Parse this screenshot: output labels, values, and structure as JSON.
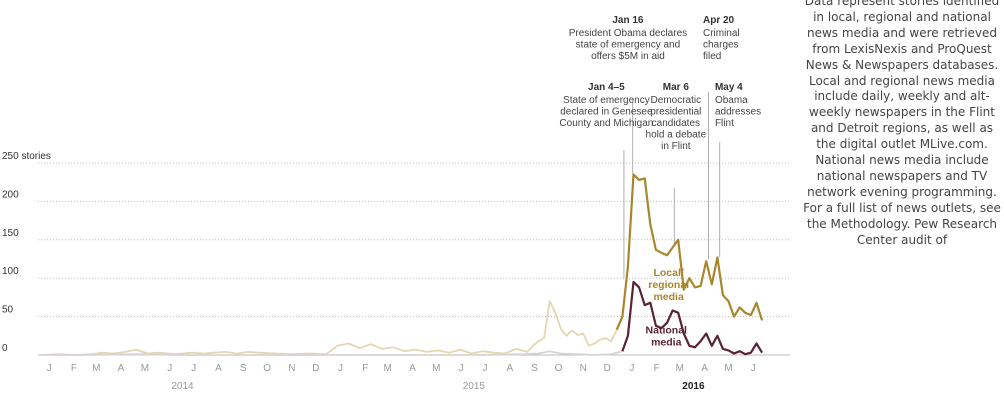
{
  "note": "Data represent stories identified in local, regional and national news media and were retrieved from LexisNexis and ProQuest News & Newspapers databases. Local and regional news media include daily, weekly and alt-weekly newspapers in the Flint and Detroit regions, as well as the digital outlet MLive.com. National news media include national newspapers and TV network evening programming. For a full list of news outlets, see the Methodology. Pew Research Center audit of",
  "colors": {
    "local_highlight": "#a8862c",
    "local_faded": "#e3d7b2",
    "national_highlight": "#5a2331",
    "national_faded": "#d9d2d4",
    "grid": "#bdbdbd",
    "annotation_line": "#9a9a9a"
  },
  "chart_data": {
    "type": "line",
    "x_unit": "week",
    "x_start": "2014-01-01",
    "x_end": "2016-07-31",
    "ylim": [
      0,
      250
    ],
    "grid": true,
    "y_ticks": [
      {
        "value": 0,
        "label": "0"
      },
      {
        "value": 50,
        "label": "50"
      },
      {
        "value": 100,
        "label": "100"
      },
      {
        "value": 150,
        "label": "150"
      },
      {
        "value": 200,
        "label": "200"
      },
      {
        "value": 250,
        "label": "250 stories"
      }
    ],
    "x_ticks": [
      {
        "date": "2014-01-15",
        "label": "J"
      },
      {
        "date": "2014-02-15",
        "label": "F"
      },
      {
        "date": "2014-03-15",
        "label": "M"
      },
      {
        "date": "2014-04-15",
        "label": "A"
      },
      {
        "date": "2014-05-15",
        "label": "M"
      },
      {
        "date": "2014-06-15",
        "label": "J"
      },
      {
        "date": "2014-07-15",
        "label": "J"
      },
      {
        "date": "2014-08-15",
        "label": "A"
      },
      {
        "date": "2014-09-15",
        "label": "S"
      },
      {
        "date": "2014-10-15",
        "label": "O"
      },
      {
        "date": "2014-11-15",
        "label": "N"
      },
      {
        "date": "2014-12-15",
        "label": "D"
      },
      {
        "date": "2015-01-15",
        "label": "J"
      },
      {
        "date": "2015-02-15",
        "label": "F"
      },
      {
        "date": "2015-03-15",
        "label": "M"
      },
      {
        "date": "2015-04-15",
        "label": "A"
      },
      {
        "date": "2015-05-15",
        "label": "M"
      },
      {
        "date": "2015-06-15",
        "label": "J"
      },
      {
        "date": "2015-07-15",
        "label": "J"
      },
      {
        "date": "2015-08-15",
        "label": "A"
      },
      {
        "date": "2015-09-15",
        "label": "S"
      },
      {
        "date": "2015-10-15",
        "label": "O"
      },
      {
        "date": "2015-11-15",
        "label": "N"
      },
      {
        "date": "2015-12-15",
        "label": "D"
      },
      {
        "date": "2016-01-15",
        "label": "J"
      },
      {
        "date": "2016-02-15",
        "label": "F"
      },
      {
        "date": "2016-03-15",
        "label": "M"
      },
      {
        "date": "2016-04-15",
        "label": "A"
      },
      {
        "date": "2016-05-15",
        "label": "M"
      },
      {
        "date": "2016-06-15",
        "label": "J"
      }
    ],
    "year_labels": [
      {
        "date": "2014-07-01",
        "label": "2014",
        "bold": false
      },
      {
        "date": "2015-07-01",
        "label": "2015",
        "bold": false
      },
      {
        "date": "2016-04-01",
        "label": "2016",
        "bold": true
      }
    ],
    "highlight_from": "2016-01-01",
    "series": [
      {
        "name": "Local/ regional media",
        "color_key": "local",
        "points": [
          [
            "2014-01-05",
            0
          ],
          [
            "2014-01-26",
            1
          ],
          [
            "2014-02-16",
            0
          ],
          [
            "2014-03-09",
            1
          ],
          [
            "2014-03-23",
            3
          ],
          [
            "2014-04-06",
            2
          ],
          [
            "2014-04-20",
            4
          ],
          [
            "2014-05-04",
            7
          ],
          [
            "2014-05-18",
            2
          ],
          [
            "2014-06-01",
            3
          ],
          [
            "2014-06-22",
            1
          ],
          [
            "2014-07-13",
            3
          ],
          [
            "2014-07-27",
            2
          ],
          [
            "2014-08-10",
            3
          ],
          [
            "2014-08-24",
            4
          ],
          [
            "2014-09-07",
            2
          ],
          [
            "2014-09-21",
            4
          ],
          [
            "2014-10-05",
            3
          ],
          [
            "2014-10-26",
            2
          ],
          [
            "2014-11-16",
            1
          ],
          [
            "2014-12-07",
            2
          ],
          [
            "2014-12-28",
            1
          ],
          [
            "2015-01-11",
            12
          ],
          [
            "2015-01-25",
            15
          ],
          [
            "2015-02-08",
            9
          ],
          [
            "2015-02-22",
            14
          ],
          [
            "2015-03-08",
            8
          ],
          [
            "2015-03-22",
            10
          ],
          [
            "2015-04-05",
            5
          ],
          [
            "2015-04-19",
            7
          ],
          [
            "2015-05-03",
            4
          ],
          [
            "2015-05-17",
            6
          ],
          [
            "2015-05-31",
            3
          ],
          [
            "2015-06-14",
            7
          ],
          [
            "2015-06-28",
            2
          ],
          [
            "2015-07-12",
            5
          ],
          [
            "2015-07-26",
            3
          ],
          [
            "2015-08-09",
            2
          ],
          [
            "2015-08-23",
            8
          ],
          [
            "2015-09-06",
            4
          ],
          [
            "2015-09-13",
            12
          ],
          [
            "2015-09-20",
            18
          ],
          [
            "2015-09-27",
            22
          ],
          [
            "2015-10-04",
            70
          ],
          [
            "2015-10-11",
            55
          ],
          [
            "2015-10-18",
            34
          ],
          [
            "2015-10-25",
            25
          ],
          [
            "2015-11-01",
            32
          ],
          [
            "2015-11-08",
            26
          ],
          [
            "2015-11-15",
            28
          ],
          [
            "2015-11-22",
            12
          ],
          [
            "2015-11-29",
            15
          ],
          [
            "2015-12-06",
            20
          ],
          [
            "2015-12-13",
            22
          ],
          [
            "2015-12-20",
            18
          ],
          [
            "2015-12-27",
            33
          ],
          [
            "2016-01-03",
            50
          ],
          [
            "2016-01-10",
            115
          ],
          [
            "2016-01-17",
            235
          ],
          [
            "2016-01-24",
            228
          ],
          [
            "2016-01-31",
            230
          ],
          [
            "2016-02-07",
            170
          ],
          [
            "2016-02-14",
            137
          ],
          [
            "2016-02-21",
            133
          ],
          [
            "2016-02-28",
            130
          ],
          [
            "2016-03-06",
            140
          ],
          [
            "2016-03-13",
            150
          ],
          [
            "2016-03-20",
            85
          ],
          [
            "2016-03-27",
            100
          ],
          [
            "2016-04-03",
            88
          ],
          [
            "2016-04-10",
            90
          ],
          [
            "2016-04-17",
            122
          ],
          [
            "2016-04-24",
            92
          ],
          [
            "2016-05-01",
            127
          ],
          [
            "2016-05-08",
            78
          ],
          [
            "2016-05-15",
            70
          ],
          [
            "2016-05-22",
            50
          ],
          [
            "2016-05-29",
            62
          ],
          [
            "2016-06-05",
            55
          ],
          [
            "2016-06-12",
            52
          ],
          [
            "2016-06-19",
            68
          ],
          [
            "2016-06-26",
            45
          ]
        ]
      },
      {
        "name": "National media",
        "color_key": "national",
        "points": [
          [
            "2014-01-05",
            0
          ],
          [
            "2014-03-01",
            0
          ],
          [
            "2014-05-01",
            1
          ],
          [
            "2014-07-01",
            0
          ],
          [
            "2014-09-01",
            0
          ],
          [
            "2014-11-01",
            0
          ],
          [
            "2015-01-11",
            0
          ],
          [
            "2015-03-01",
            0
          ],
          [
            "2015-05-01",
            0
          ],
          [
            "2015-07-01",
            0
          ],
          [
            "2015-08-30",
            1
          ],
          [
            "2015-09-20",
            2
          ],
          [
            "2015-10-04",
            5
          ],
          [
            "2015-10-18",
            2
          ],
          [
            "2015-11-08",
            1
          ],
          [
            "2015-11-29",
            0
          ],
          [
            "2015-12-20",
            1
          ],
          [
            "2016-01-03",
            5
          ],
          [
            "2016-01-10",
            25
          ],
          [
            "2016-01-17",
            95
          ],
          [
            "2016-01-24",
            88
          ],
          [
            "2016-01-31",
            65
          ],
          [
            "2016-02-07",
            68
          ],
          [
            "2016-02-14",
            38
          ],
          [
            "2016-02-21",
            35
          ],
          [
            "2016-02-28",
            42
          ],
          [
            "2016-03-06",
            58
          ],
          [
            "2016-03-13",
            55
          ],
          [
            "2016-03-20",
            28
          ],
          [
            "2016-03-27",
            12
          ],
          [
            "2016-04-03",
            10
          ],
          [
            "2016-04-10",
            18
          ],
          [
            "2016-04-17",
            28
          ],
          [
            "2016-04-24",
            12
          ],
          [
            "2016-05-01",
            25
          ],
          [
            "2016-05-08",
            8
          ],
          [
            "2016-05-15",
            6
          ],
          [
            "2016-05-22",
            2
          ],
          [
            "2016-05-29",
            5
          ],
          [
            "2016-06-05",
            1
          ],
          [
            "2016-06-12",
            3
          ],
          [
            "2016-06-19",
            15
          ],
          [
            "2016-06-26",
            3
          ]
        ]
      }
    ],
    "series_labels": [
      {
        "lines": [
          "Local/",
          "regional",
          "media"
        ],
        "date": "2016-03-01",
        "value": 103,
        "color_key": "local"
      },
      {
        "lines": [
          "National",
          "media"
        ],
        "date": "2016-02-27",
        "value": 28,
        "color_key": "national"
      }
    ],
    "annotations": [
      {
        "date_label": "Jan 4–5",
        "lines": [
          "State of emergency",
          "declared in Genesee",
          "County and Michigan"
        ],
        "x_date": "2015-12-14",
        "align": "middle",
        "line_date": "2016-01-05",
        "line_value": 100
      },
      {
        "date_label": "Jan 16",
        "lines": [
          "President Obama declares",
          "state of emergency and",
          "offers $5M in aid"
        ],
        "x_date": "2016-01-10",
        "align": "middle",
        "line_date": "2016-01-16",
        "line_value": 235
      },
      {
        "date_label": "Mar 6",
        "lines": [
          "Democratic",
          "presidential",
          "candidates",
          "hold a debate",
          "in Flint"
        ],
        "x_date": "2016-03-10",
        "align": "middle",
        "line_date": "2016-03-08",
        "line_value": 145
      },
      {
        "date_label": "Apr 20",
        "lines": [
          "Criminal",
          "charges",
          "filed"
        ],
        "x_date": "2016-04-13",
        "align": "start",
        "line_date": "2016-04-20",
        "line_value": 125
      },
      {
        "date_label": "May 4",
        "lines": [
          "Obama",
          "addresses",
          "Flint"
        ],
        "x_date": "2016-04-28",
        "align": "start",
        "line_date": "2016-05-04",
        "line_value": 127
      }
    ]
  }
}
